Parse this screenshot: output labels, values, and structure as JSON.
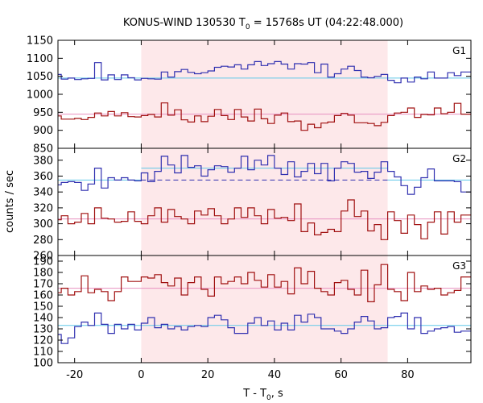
{
  "chart_data": {
    "type": "line",
    "title": "KONUS-WIND 130530 T",
    "title_sub": "0",
    "title_rest": " = 15768s UT (04:22:48.000)",
    "xlabel": "T - T",
    "xlabel_sub": "0",
    "xlabel_rest": ", s",
    "ylabel": "counts / sec",
    "xlim": [
      -25,
      99
    ],
    "x_ticks": [
      -20,
      0,
      20,
      40,
      60,
      80
    ],
    "x_tick_labels": [
      "-20",
      "0",
      "20",
      "40",
      "60",
      "80"
    ],
    "highlight_interval": [
      0,
      74
    ],
    "highlight_color": "#fde8ea",
    "grid": false,
    "panels": [
      {
        "name": "G1",
        "ylim": [
          850,
          1150
        ],
        "y_ticks": [
          850,
          900,
          950,
          1000,
          1050,
          1100,
          1150
        ],
        "y_tick_labels": [
          "850",
          "900",
          "950",
          "1000",
          "1050",
          "1100",
          "1150"
        ],
        "series": [
          {
            "color": "#3030b0",
            "bin_edges": [
              -25,
              -24,
              -22,
              -20,
              -18,
              -16,
              -14,
              -12,
              -10,
              -8,
              -6,
              -4,
              -2,
              0,
              2,
              4,
              6,
              8,
              10,
              12,
              14,
              16,
              18,
              20,
              22,
              24,
              26,
              28,
              30,
              32,
              34,
              36,
              38,
              40,
              42,
              44,
              46,
              48,
              50,
              52,
              54,
              56,
              58,
              60,
              62,
              64,
              66,
              68,
              70,
              72,
              74,
              76,
              78,
              80,
              82,
              84,
              86,
              88,
              90,
              92,
              94,
              96,
              98,
              99
            ],
            "values": [
              1055,
              1042,
              1045,
              1041,
              1043,
              1044,
              1088,
              1040,
              1054,
              1041,
              1054,
              1046,
              1040,
              1044,
              1043,
              1042,
              1062,
              1048,
              1063,
              1069,
              1061,
              1057,
              1060,
              1065,
              1075,
              1078,
              1076,
              1082,
              1070,
              1082,
              1091,
              1080,
              1085,
              1091,
              1084,
              1070,
              1085,
              1084,
              1088,
              1060,
              1084,
              1048,
              1057,
              1070,
              1078,
              1066,
              1048,
              1046,
              1050,
              1055,
              1039,
              1032,
              1045,
              1034,
              1048,
              1043,
              1062,
              1045,
              1045,
              1060,
              1052,
              1062,
              1062
            ]
          },
          {
            "color": "#a01010",
            "bin_edges": [
              -25,
              -24,
              -22,
              -20,
              -18,
              -16,
              -14,
              -12,
              -10,
              -8,
              -6,
              -4,
              -2,
              0,
              2,
              4,
              6,
              8,
              10,
              12,
              14,
              16,
              18,
              20,
              22,
              24,
              26,
              28,
              30,
              32,
              34,
              36,
              38,
              40,
              42,
              44,
              46,
              48,
              50,
              52,
              54,
              56,
              58,
              60,
              62,
              64,
              66,
              68,
              70,
              72,
              74,
              76,
              78,
              80,
              82,
              84,
              86,
              88,
              90,
              92,
              94,
              96,
              98,
              99
            ],
            "values": [
              940,
              931,
              931,
              933,
              930,
              936,
              948,
              940,
              952,
              940,
              949,
              938,
              937,
              941,
              944,
              937,
              976,
              942,
              957,
              929,
              923,
              940,
              924,
              939,
              958,
              941,
              930,
              958,
              937,
              926,
              959,
              932,
              919,
              942,
              948,
              924,
              926,
              900,
              917,
              907,
              920,
              923,
              941,
              947,
              942,
              921,
              921,
              919,
              913,
              922,
              941,
              948,
              950,
              962,
              936,
              944,
              943,
              962,
              946,
              950,
              975,
              945,
              945
            ]
          }
        ],
        "fit_lines": [
          {
            "y": 1045,
            "color": "#60c8e8",
            "dashed": false,
            "x_range": [
              -25,
              99
            ]
          },
          {
            "y": 945,
            "color": "#e890c0",
            "dashed": false,
            "x_range": [
              -25,
              99
            ]
          }
        ]
      },
      {
        "name": "G2",
        "ylim": [
          260,
          395
        ],
        "y_ticks": [
          260,
          280,
          300,
          320,
          340,
          360,
          380
        ],
        "y_tick_labels": [
          "260",
          "280",
          "300",
          "320",
          "340",
          "360",
          "380"
        ],
        "series": [
          {
            "color": "#3030b0",
            "bin_edges": [
              -25,
              -24,
              -22,
              -20,
              -18,
              -16,
              -14,
              -12,
              -10,
              -8,
              -6,
              -4,
              -2,
              0,
              2,
              4,
              6,
              8,
              10,
              12,
              14,
              16,
              18,
              20,
              22,
              24,
              26,
              28,
              30,
              32,
              34,
              36,
              38,
              40,
              42,
              44,
              46,
              48,
              50,
              52,
              54,
              56,
              58,
              60,
              62,
              64,
              66,
              68,
              70,
              72,
              74,
              76,
              78,
              80,
              82,
              84,
              86,
              88,
              90,
              92,
              94,
              96,
              98,
              99
            ],
            "values": [
              349,
              352,
              353,
              352,
              342,
              350,
              370,
              345,
              358,
              355,
              358,
              355,
              354,
              364,
              353,
              366,
              385,
              374,
              364,
              386,
              371,
              373,
              360,
              368,
              373,
              372,
              365,
              370,
              385,
              368,
              380,
              374,
              386,
              370,
              362,
              378,
              359,
              366,
              376,
              363,
              376,
              354,
              370,
              378,
              376,
              365,
              366,
              357,
              365,
              378,
              366,
              359,
              348,
              337,
              346,
              358,
              369,
              354,
              354,
              354,
              353,
              340,
              340
            ]
          },
          {
            "color": "#a01010",
            "bin_edges": [
              -25,
              -24,
              -22,
              -20,
              -18,
              -16,
              -14,
              -12,
              -10,
              -8,
              -6,
              -4,
              -2,
              0,
              2,
              4,
              6,
              8,
              10,
              12,
              14,
              16,
              18,
              20,
              22,
              24,
              26,
              28,
              30,
              32,
              34,
              36,
              38,
              40,
              42,
              44,
              46,
              48,
              50,
              52,
              54,
              56,
              58,
              60,
              62,
              64,
              66,
              68,
              70,
              72,
              74,
              76,
              78,
              80,
              82,
              84,
              86,
              88,
              90,
              92,
              94,
              96,
              98,
              99
            ],
            "values": [
              305,
              310,
              300,
              302,
              313,
              300,
              320,
              307,
              306,
              302,
              303,
              315,
              303,
              300,
              310,
              320,
              302,
              318,
              309,
              306,
              300,
              316,
              311,
              319,
              310,
              300,
              306,
              320,
              308,
              320,
              310,
              300,
              318,
              307,
              308,
              304,
              325,
              290,
              301,
              286,
              289,
              293,
              290,
              316,
              330,
              309,
              316,
              291,
              299,
              280,
              315,
              304,
              288,
              311,
              299,
              281,
              302,
              315,
              287,
              315,
              302,
              311,
              311
            ]
          }
        ],
        "fit_lines": [
          {
            "y": 355,
            "color": "#60c8e8",
            "dashed": false,
            "x_range": [
              -25,
              0
            ]
          },
          {
            "y": 370,
            "color": "#60c8e8",
            "dashed": false,
            "x_range": [
              0,
              74
            ]
          },
          {
            "y": 355,
            "color": "#3030b0",
            "dashed": true,
            "x_range": [
              0,
              74
            ]
          },
          {
            "y": 355,
            "color": "#60c8e8",
            "dashed": false,
            "x_range": [
              74,
              99
            ]
          },
          {
            "y": 306,
            "color": "#e890c0",
            "dashed": false,
            "x_range": [
              -25,
              99
            ]
          }
        ]
      },
      {
        "name": "G3",
        "ylim": [
          100,
          195
        ],
        "y_ticks": [
          100,
          110,
          120,
          130,
          140,
          150,
          160,
          170,
          180,
          190
        ],
        "y_tick_labels": [
          "100",
          "110",
          "120",
          "130",
          "140",
          "150",
          "160",
          "170",
          "180",
          "190"
        ],
        "series": [
          {
            "color": "#a01010",
            "bin_edges": [
              -25,
              -24,
              -22,
              -20,
              -18,
              -16,
              -14,
              -12,
              -10,
              -8,
              -6,
              -4,
              -2,
              0,
              2,
              4,
              6,
              8,
              10,
              12,
              14,
              16,
              18,
              20,
              22,
              24,
              26,
              28,
              30,
              32,
              34,
              36,
              38,
              40,
              42,
              44,
              46,
              48,
              50,
              52,
              54,
              56,
              58,
              60,
              62,
              64,
              66,
              68,
              70,
              72,
              74,
              76,
              78,
              80,
              82,
              84,
              86,
              88,
              90,
              92,
              94,
              96,
              98,
              99
            ],
            "values": [
              162,
              166,
              160,
              163,
              177,
              162,
              165,
              163,
              155,
              163,
              176,
              172,
              172,
              176,
              175,
              178,
              171,
              168,
              175,
              160,
              171,
              176,
              165,
              159,
              176,
              170,
              172,
              176,
              170,
              180,
              173,
              167,
              178,
              167,
              172,
              161,
              184,
              170,
              181,
              166,
              163,
              160,
              171,
              173,
              165,
              160,
              182,
              154,
              169,
              187,
              165,
              163,
              155,
              180,
              163,
              168,
              165,
              166,
              160,
              162,
              164,
              176,
              176
            ]
          },
          {
            "color": "#3030b0",
            "bin_edges": [
              -25,
              -24,
              -22,
              -20,
              -18,
              -16,
              -14,
              -12,
              -10,
              -8,
              -6,
              -4,
              -2,
              0,
              2,
              4,
              6,
              8,
              10,
              12,
              14,
              16,
              18,
              20,
              22,
              24,
              26,
              28,
              30,
              32,
              34,
              36,
              38,
              40,
              42,
              44,
              46,
              48,
              50,
              52,
              54,
              56,
              58,
              60,
              62,
              64,
              66,
              68,
              70,
              72,
              74,
              76,
              78,
              80,
              82,
              84,
              86,
              88,
              90,
              92,
              94,
              96,
              98,
              99
            ],
            "values": [
              125,
              117,
              122,
              132,
              136,
              133,
              144,
              134,
              126,
              134,
              130,
              134,
              129,
              135,
              140,
              131,
              134,
              130,
              132,
              129,
              132,
              133,
              132,
              140,
              142,
              138,
              131,
              126,
              126,
              135,
              140,
              133,
              137,
              129,
              135,
              129,
              142,
              136,
              143,
              140,
              130,
              130,
              128,
              126,
              130,
              136,
              141,
              137,
              130,
              131,
              140,
              141,
              144,
              130,
              140,
              126,
              128,
              130,
              131,
              132,
              127,
              128,
              128
            ]
          }
        ],
        "fit_lines": [
          {
            "y": 166,
            "color": "#e890c0",
            "dashed": false,
            "x_range": [
              -25,
              99
            ]
          },
          {
            "y": 133,
            "color": "#60c8e8",
            "dashed": false,
            "x_range": [
              -25,
              99
            ]
          }
        ]
      }
    ]
  }
}
